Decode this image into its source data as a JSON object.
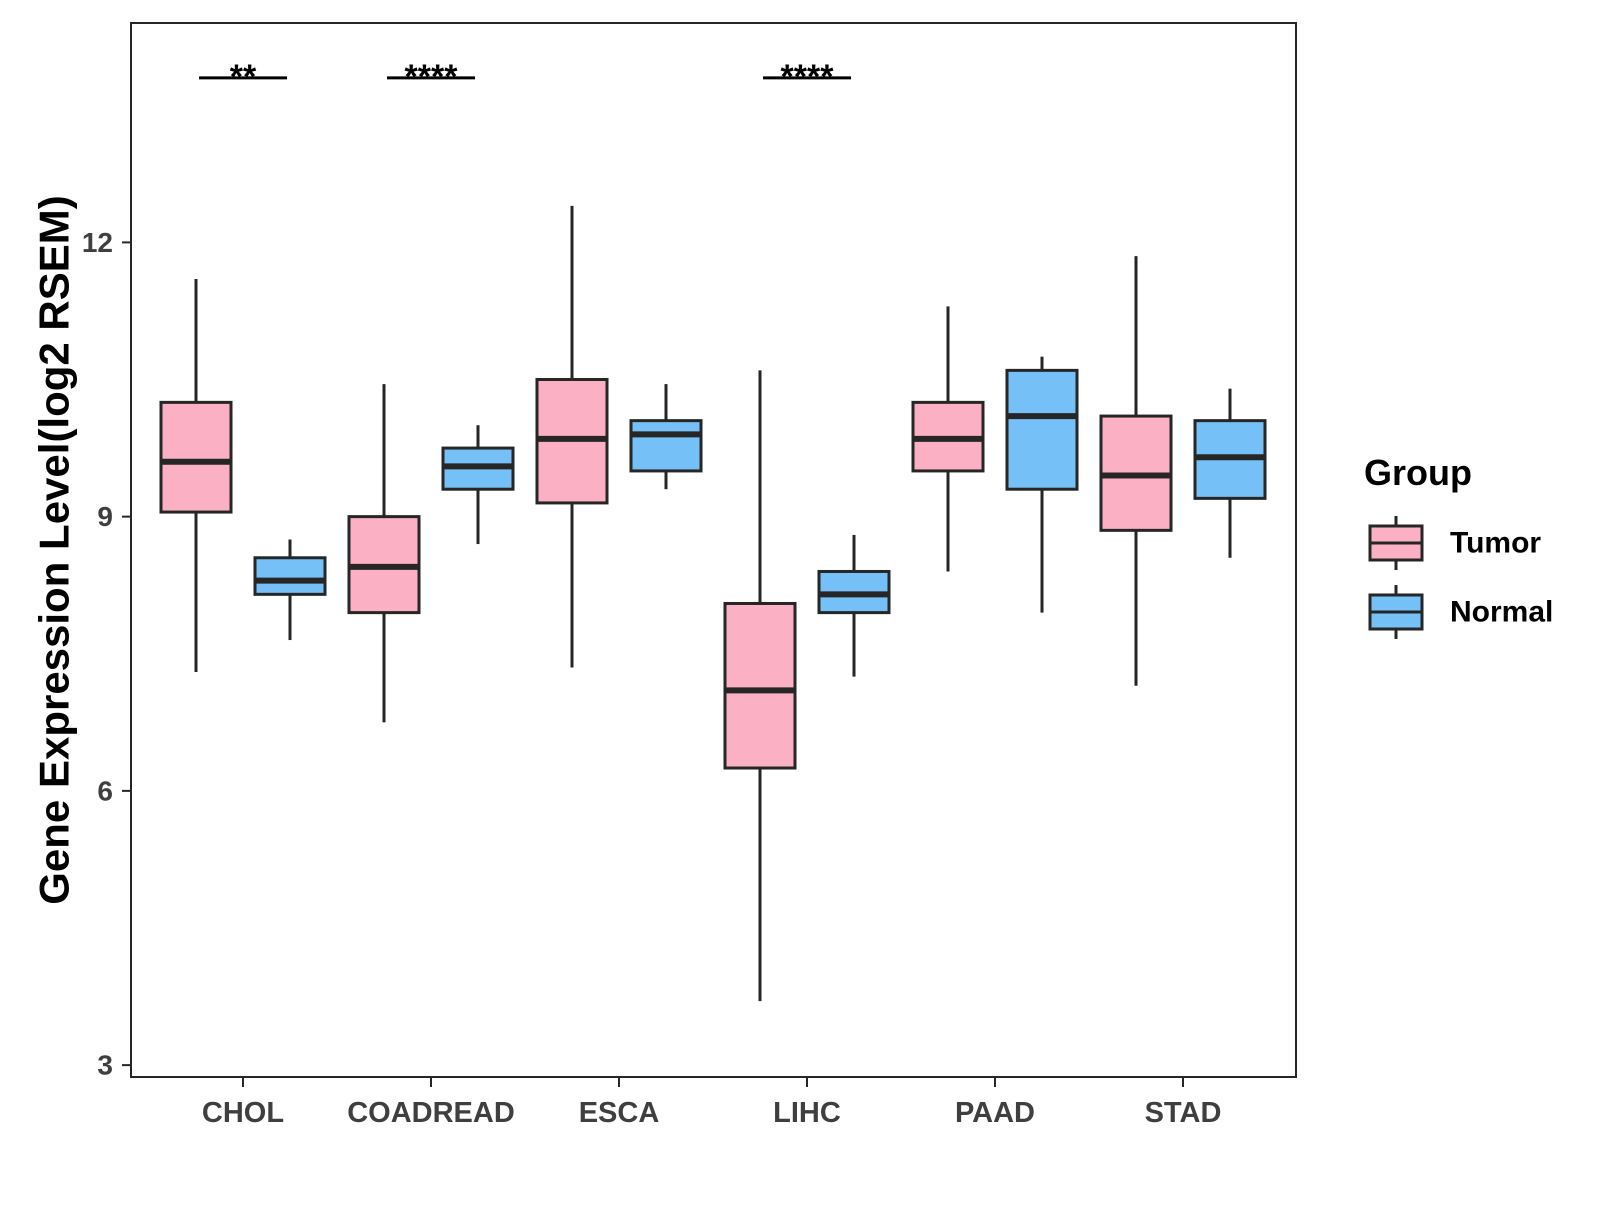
{
  "chart_data": {
    "type": "box",
    "title": "",
    "xlabel": "",
    "ylabel": "Gene Expression Level(log2 RSEM)",
    "ylim": [
      2.87,
      14.4
    ],
    "yticks": [
      3,
      6,
      9,
      12
    ],
    "yticks_labels": [
      "3",
      "6",
      "9",
      "12"
    ],
    "categories": [
      "CHOL",
      "COADREAD",
      "ESCA",
      "LIHC",
      "PAAD",
      "STAD"
    ],
    "legend": {
      "title": "Group",
      "position": "right",
      "entries": [
        "Tumor",
        "Normal"
      ]
    },
    "colors": {
      "Tumor": "#fbb1c3",
      "Normal": "#74c0f7",
      "stroke": "#262626"
    },
    "series": [
      {
        "name": "Tumor",
        "boxes": [
          {
            "category": "CHOL",
            "min": 7.3,
            "q1": 9.05,
            "median": 9.6,
            "q3": 10.25,
            "max": 11.6
          },
          {
            "category": "COADREAD",
            "min": 6.75,
            "q1": 7.95,
            "median": 8.45,
            "q3": 9.0,
            "max": 10.45
          },
          {
            "category": "ESCA",
            "min": 7.35,
            "q1": 9.15,
            "median": 9.85,
            "q3": 10.5,
            "max": 12.4
          },
          {
            "category": "LIHC",
            "min": 3.7,
            "q1": 6.25,
            "median": 7.1,
            "q3": 8.05,
            "max": 10.6
          },
          {
            "category": "PAAD",
            "min": 8.4,
            "q1": 9.5,
            "median": 9.85,
            "q3": 10.25,
            "max": 11.3
          },
          {
            "category": "STAD",
            "min": 7.15,
            "q1": 8.85,
            "median": 9.45,
            "q3": 10.1,
            "max": 11.85
          }
        ]
      },
      {
        "name": "Normal",
        "boxes": [
          {
            "category": "CHOL",
            "min": 7.65,
            "q1": 8.15,
            "median": 8.3,
            "q3": 8.55,
            "max": 8.75
          },
          {
            "category": "COADREAD",
            "min": 8.7,
            "q1": 9.3,
            "median": 9.55,
            "q3": 9.75,
            "max": 10.0
          },
          {
            "category": "ESCA",
            "min": 9.3,
            "q1": 9.5,
            "median": 9.9,
            "q3": 10.05,
            "max": 10.45
          },
          {
            "category": "LIHC",
            "min": 7.25,
            "q1": 7.95,
            "median": 8.15,
            "q3": 8.4,
            "max": 8.8
          },
          {
            "category": "PAAD",
            "min": 7.95,
            "q1": 9.3,
            "median": 10.1,
            "q3": 10.6,
            "max": 10.75
          },
          {
            "category": "STAD",
            "min": 8.55,
            "q1": 9.2,
            "median": 9.65,
            "q3": 10.05,
            "max": 10.4
          }
        ]
      }
    ],
    "annotations": [
      {
        "category": "CHOL",
        "label": "**",
        "y": 13.8
      },
      {
        "category": "COADREAD",
        "label": "****",
        "y": 13.8
      },
      {
        "category": "LIHC",
        "label": "****",
        "y": 13.8
      }
    ]
  }
}
